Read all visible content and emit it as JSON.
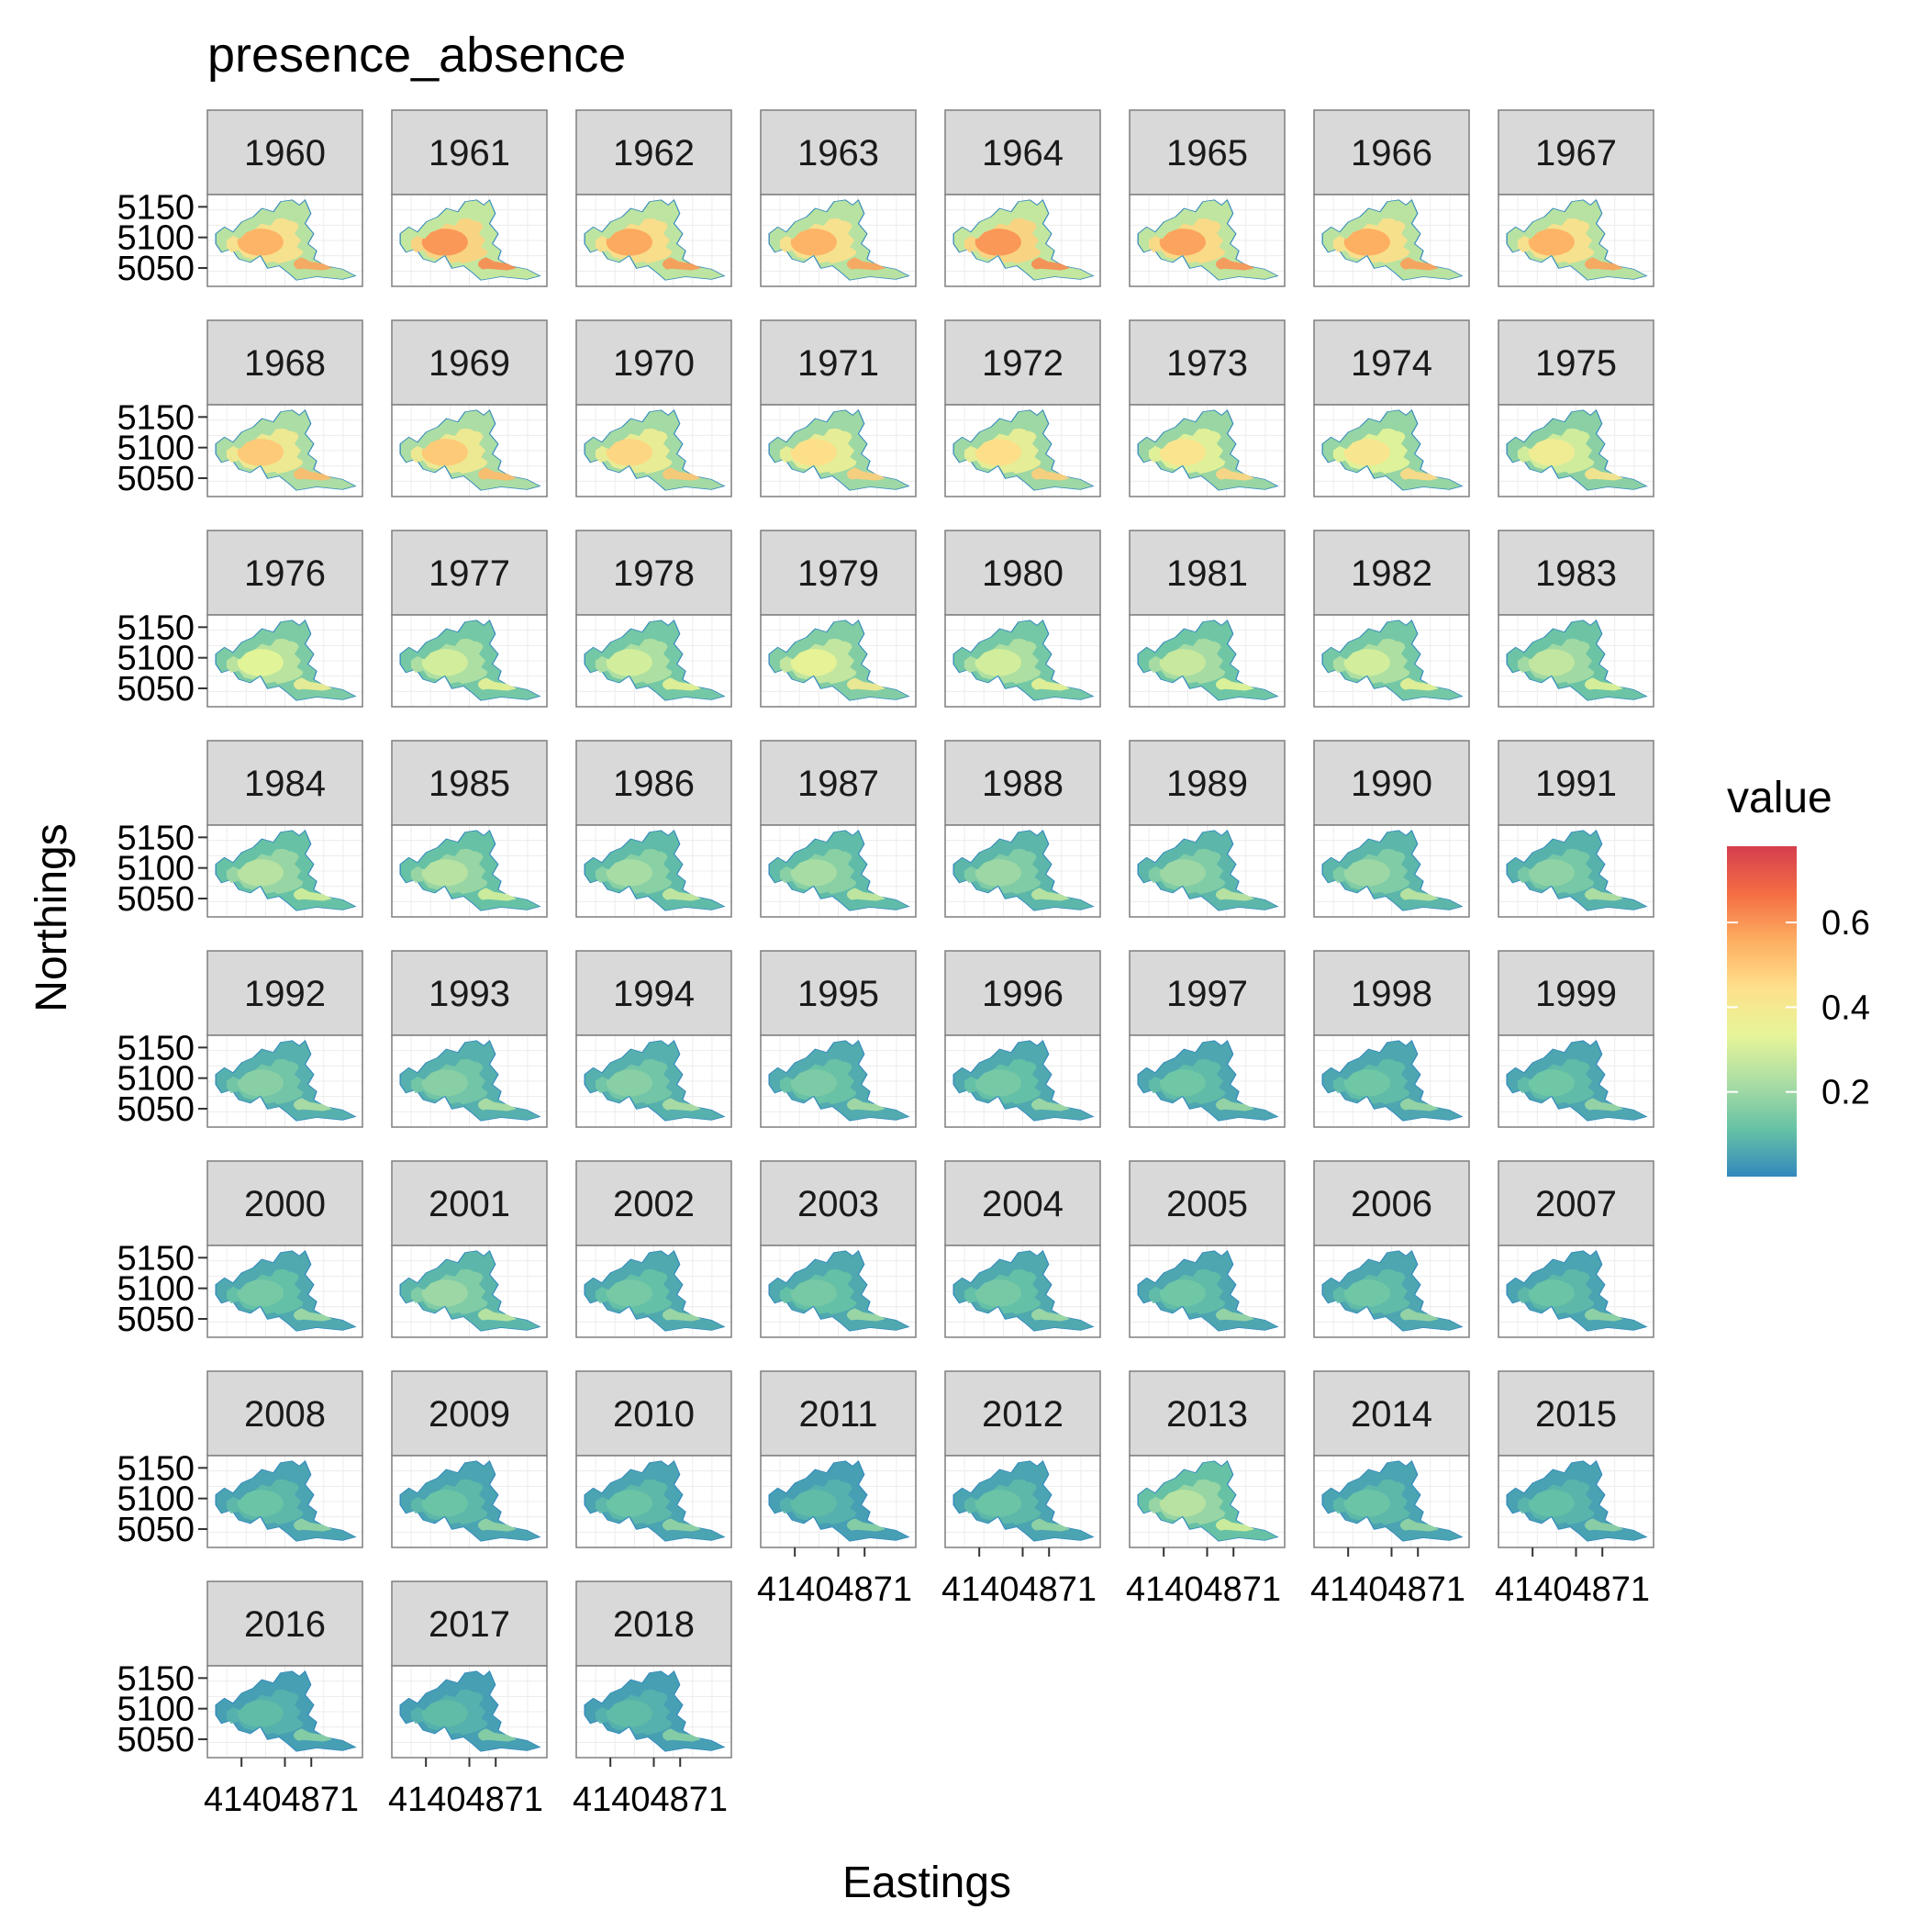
{
  "chart_data": {
    "type": "heatmap",
    "title": "presence_absence",
    "xlabel": "Eastings",
    "ylabel": "Northings",
    "facet_variable": "year",
    "panels": [
      "1960",
      "1961",
      "1962",
      "1963",
      "1964",
      "1965",
      "1966",
      "1967",
      "1968",
      "1969",
      "1970",
      "1971",
      "1972",
      "1973",
      "1974",
      "1975",
      "1976",
      "1977",
      "1978",
      "1979",
      "1980",
      "1981",
      "1982",
      "1983",
      "1984",
      "1985",
      "1986",
      "1987",
      "1988",
      "1989",
      "1990",
      "1991",
      "1992",
      "1993",
      "1994",
      "1995",
      "1996",
      "1997",
      "1998",
      "1999",
      "2000",
      "2001",
      "2002",
      "2003",
      "2004",
      "2005",
      "2006",
      "2007",
      "2008",
      "2009",
      "2010",
      "2011",
      "2012",
      "2013",
      "2014",
      "2015",
      "2016",
      "2017",
      "2018"
    ],
    "ncol": 8,
    "panel_values": [
      0.55,
      0.6,
      0.57,
      0.55,
      0.6,
      0.58,
      0.56,
      0.55,
      0.5,
      0.5,
      0.47,
      0.45,
      0.45,
      0.43,
      0.42,
      0.38,
      0.33,
      0.3,
      0.3,
      0.35,
      0.3,
      0.28,
      0.3,
      0.27,
      0.25,
      0.25,
      0.22,
      0.22,
      0.2,
      0.2,
      0.2,
      0.18,
      0.17,
      0.17,
      0.17,
      0.15,
      0.14,
      0.13,
      0.13,
      0.13,
      0.14,
      0.2,
      0.14,
      0.14,
      0.14,
      0.13,
      0.13,
      0.12,
      0.12,
      0.12,
      0.12,
      0.1,
      0.12,
      0.25,
      0.12,
      0.11,
      0.1,
      0.1,
      0.1
    ],
    "y_ticks": [
      "5150",
      "5100",
      "5050"
    ],
    "y_tick_values": [
      5150,
      5100,
      5050
    ],
    "ylim": [
      5020,
      5170
    ],
    "x_tick_label_overlap": "41404871",
    "xlim": [
      390,
      530
    ],
    "legend": {
      "title": "value",
      "position": "right",
      "ticks": [
        "0.6",
        "0.4",
        "0.2"
      ],
      "tick_values": [
        0.6,
        0.4,
        0.2
      ],
      "range": [
        0.0,
        0.78
      ],
      "palette": "Spectral",
      "colors": [
        "#3288bd",
        "#66c2a5",
        "#abdda4",
        "#e6f598",
        "#fee08b",
        "#fdae61",
        "#f46d43",
        "#d53e4f"
      ]
    },
    "grid": true,
    "strip_color": "#d9d9d9",
    "panel_border_color": "#7f7f7f"
  }
}
